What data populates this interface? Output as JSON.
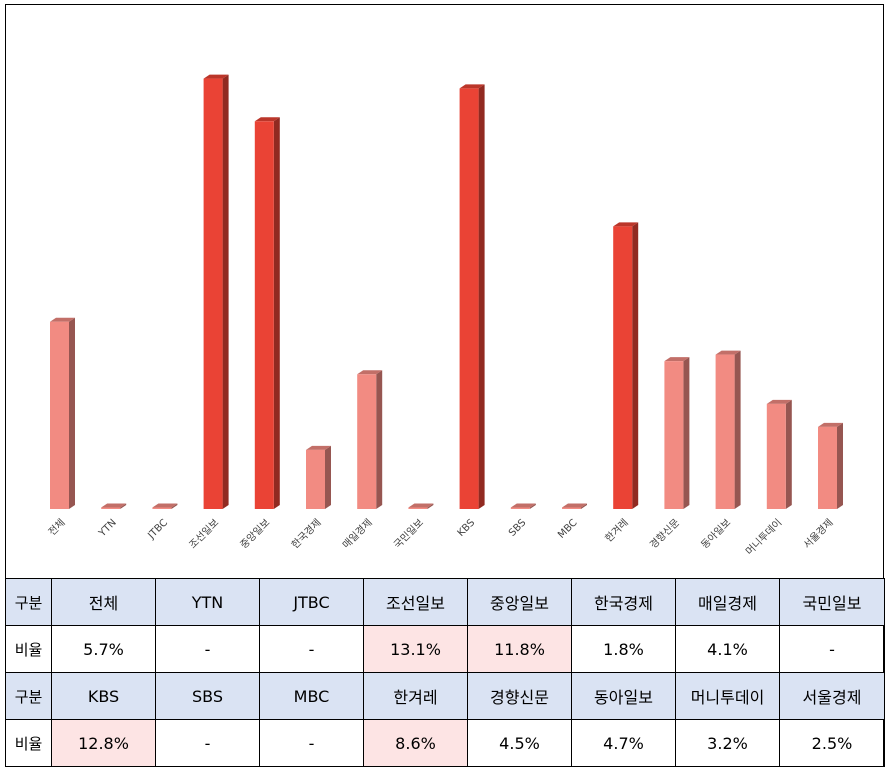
{
  "chart_data": {
    "type": "bar",
    "categories": [
      "전체",
      "YTN",
      "JTBC",
      "조선일보",
      "중앙일보",
      "한국경제",
      "매일경제",
      "국민일보",
      "KBS",
      "SBS",
      "MBC",
      "한겨레",
      "경향신문",
      "동아일보",
      "머니투데이",
      "서울경제"
    ],
    "values": [
      5.7,
      0,
      0,
      13.1,
      11.8,
      1.8,
      4.1,
      0,
      12.8,
      0,
      0,
      8.6,
      4.5,
      4.7,
      3.2,
      2.5
    ],
    "highlighted": [
      false,
      false,
      false,
      true,
      true,
      false,
      false,
      false,
      true,
      false,
      false,
      true,
      false,
      false,
      false,
      false
    ],
    "ylim": [
      0,
      14
    ],
    "grid": false,
    "legend": "none",
    "colors": {
      "highlight": "#ea4335",
      "normal": "#f28b82"
    }
  },
  "table": {
    "rows": [
      {
        "type": "head",
        "cells": [
          "구분",
          "전체",
          "YTN",
          "JTBC",
          "조선일보",
          "중앙일보",
          "한국경제",
          "매일경제",
          "국민일보"
        ],
        "highlight": [
          false,
          false,
          false,
          false,
          false,
          false,
          false,
          false,
          false
        ]
      },
      {
        "type": "data",
        "cells": [
          "비율",
          "5.7%",
          "-",
          "-",
          "13.1%",
          "11.8%",
          "1.8%",
          "4.1%",
          "-"
        ],
        "highlight": [
          false,
          false,
          false,
          false,
          true,
          true,
          false,
          false,
          false
        ]
      },
      {
        "type": "head",
        "cells": [
          "구분",
          "KBS",
          "SBS",
          "MBC",
          "한겨레",
          "경향신문",
          "동아일보",
          "머니투데이",
          "서울경제"
        ],
        "highlight": [
          false,
          false,
          false,
          false,
          false,
          false,
          false,
          false,
          false
        ]
      },
      {
        "type": "data",
        "cells": [
          "비율",
          "12.8%",
          "-",
          "-",
          "8.6%",
          "4.5%",
          "4.7%",
          "3.2%",
          "2.5%"
        ],
        "highlight": [
          false,
          true,
          false,
          false,
          true,
          false,
          false,
          false,
          false
        ]
      }
    ]
  }
}
